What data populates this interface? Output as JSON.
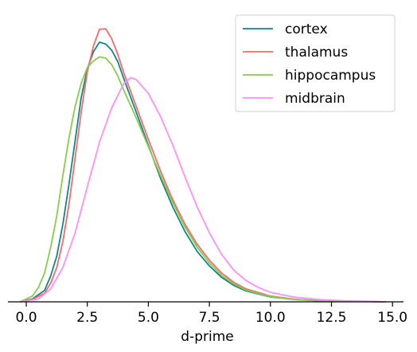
{
  "chart_data": {
    "type": "line",
    "xlabel": "d-prime",
    "ylabel": "",
    "title": "",
    "xlim": [
      -0.75,
      15.45
    ],
    "ylim": [
      0,
      1.0
    ],
    "xticks": [
      0.0,
      2.5,
      5.0,
      7.5,
      10.0,
      12.5,
      15.0
    ],
    "xtick_labels": [
      "0.0",
      "2.5",
      "5.0",
      "7.5",
      "10.0",
      "12.5",
      "15.0"
    ],
    "y_axis_visible": false,
    "grid": false,
    "legend_position": "top-right",
    "series": [
      {
        "name": "cortex",
        "color": "#0f8788",
        "x": [
          -0.25,
          0.25,
          0.75,
          1.0,
          1.25,
          1.5,
          1.75,
          2.0,
          2.25,
          2.5,
          2.75,
          3.0,
          3.25,
          3.5,
          3.75,
          4.0,
          4.5,
          5.0,
          5.5,
          6.0,
          6.5,
          7.0,
          7.5,
          8.0,
          8.5,
          9.0,
          10.0,
          11.0,
          12.0,
          13.0,
          14.0,
          14.75
        ],
        "y": [
          0.0,
          0.01,
          0.04,
          0.09,
          0.16,
          0.27,
          0.41,
          0.56,
          0.71,
          0.81,
          0.87,
          0.903,
          0.897,
          0.875,
          0.835,
          0.775,
          0.66,
          0.545,
          0.43,
          0.33,
          0.245,
          0.175,
          0.125,
          0.085,
          0.057,
          0.038,
          0.017,
          0.008,
          0.004,
          0.002,
          0.001,
          0.0
        ]
      },
      {
        "name": "thalamus",
        "color": "#f76a6a",
        "x": [
          -0.25,
          0.25,
          0.75,
          1.0,
          1.25,
          1.5,
          1.75,
          2.0,
          2.25,
          2.5,
          2.75,
          3.0,
          3.25,
          3.5,
          3.75,
          4.0,
          4.5,
          5.0,
          5.5,
          6.0,
          6.5,
          7.0,
          7.5,
          8.0,
          8.5,
          9.0,
          10.0,
          11.0,
          12.0,
          13.0,
          14.0,
          14.75
        ],
        "y": [
          0.0,
          0.008,
          0.03,
          0.065,
          0.12,
          0.21,
          0.34,
          0.5,
          0.66,
          0.8,
          0.89,
          0.948,
          0.95,
          0.915,
          0.86,
          0.795,
          0.68,
          0.565,
          0.455,
          0.355,
          0.27,
          0.2,
          0.145,
          0.1,
          0.068,
          0.045,
          0.02,
          0.009,
          0.004,
          0.002,
          0.001,
          0.0
        ]
      },
      {
        "name": "hippocampus",
        "color": "#88cc4c",
        "x": [
          -0.25,
          0.25,
          0.5,
          0.75,
          1.0,
          1.25,
          1.5,
          1.75,
          2.0,
          2.25,
          2.5,
          2.75,
          3.0,
          3.25,
          3.5,
          3.75,
          4.0,
          4.5,
          5.0,
          5.5,
          6.0,
          6.5,
          7.0,
          7.5,
          8.0,
          8.5,
          9.0,
          10.0,
          11.0,
          12.0,
          13.0,
          14.0,
          14.75
        ],
        "y": [
          0.0,
          0.02,
          0.05,
          0.1,
          0.19,
          0.3,
          0.44,
          0.57,
          0.68,
          0.76,
          0.815,
          0.838,
          0.852,
          0.848,
          0.825,
          0.785,
          0.735,
          0.64,
          0.54,
          0.44,
          0.345,
          0.26,
          0.19,
          0.135,
          0.092,
          0.062,
          0.041,
          0.018,
          0.008,
          0.004,
          0.002,
          0.001,
          0.0
        ]
      },
      {
        "name": "midbrain",
        "color": "#fc8ffa",
        "x": [
          -0.25,
          0.5,
          1.0,
          1.5,
          2.0,
          2.5,
          3.0,
          3.5,
          4.0,
          4.3,
          4.5,
          5.0,
          5.5,
          6.0,
          6.5,
          7.0,
          7.5,
          8.0,
          8.5,
          9.0,
          9.5,
          10.0,
          11.0,
          12.0,
          13.0,
          14.0,
          14.75
        ],
        "y": [
          0.0,
          0.01,
          0.045,
          0.12,
          0.24,
          0.4,
          0.555,
          0.675,
          0.76,
          0.78,
          0.773,
          0.725,
          0.645,
          0.545,
          0.435,
          0.33,
          0.24,
          0.165,
          0.11,
          0.074,
          0.05,
          0.033,
          0.016,
          0.008,
          0.004,
          0.002,
          0.0
        ]
      }
    ]
  }
}
